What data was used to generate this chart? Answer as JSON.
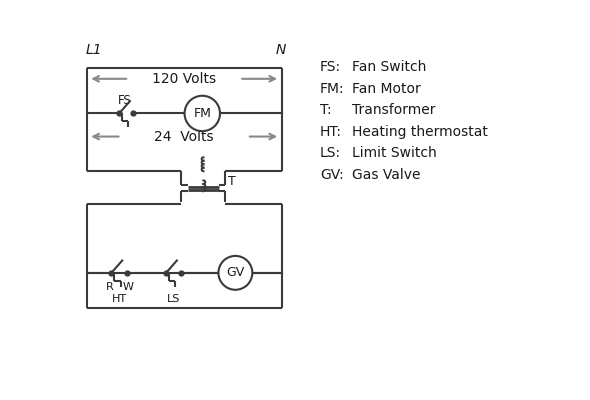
{
  "bg_color": "#ffffff",
  "line_color": "#3a3a3a",
  "arrow_color": "#888888",
  "text_color": "#1a1a1a",
  "legend_items": [
    [
      "FS:",
      "Fan Switch"
    ],
    [
      "FM:",
      "Fan Motor"
    ],
    [
      "T:",
      "Transformer"
    ],
    [
      "HT:",
      "Heating thermostat"
    ],
    [
      "LS:",
      "Limit Switch"
    ],
    [
      "GV:",
      "Gas Valve"
    ]
  ],
  "label_120": "120 Volts",
  "label_24": "24  Volts",
  "L1": "L1",
  "N": "N"
}
